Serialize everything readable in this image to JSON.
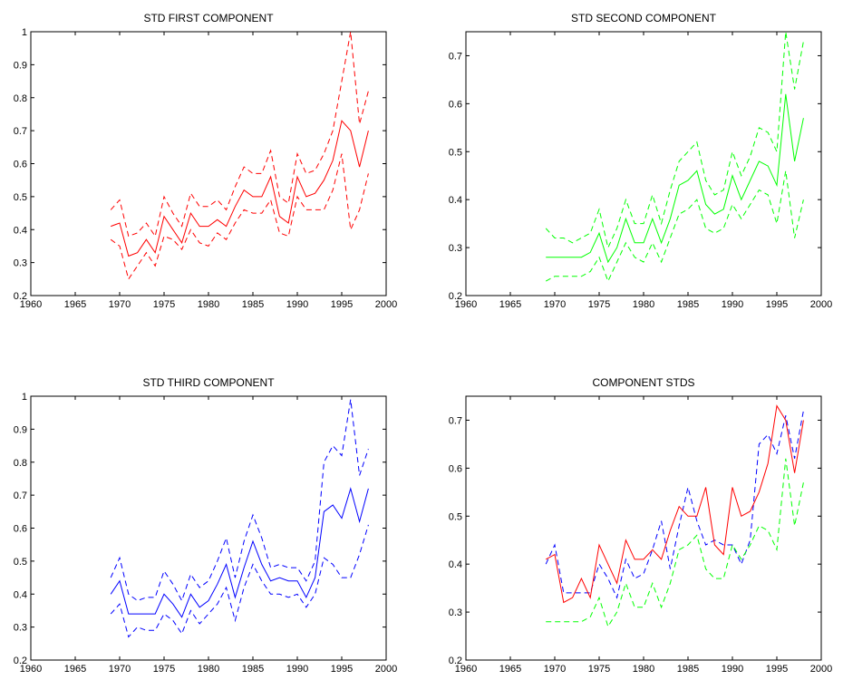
{
  "chart_data": [
    {
      "type": "line",
      "title": "STD FIRST COMPONENT",
      "xlabel": "",
      "ylabel": "",
      "xlim": [
        1960,
        2000
      ],
      "ylim": [
        0.2,
        1.0
      ],
      "xticks": [
        1960,
        1965,
        1970,
        1975,
        1980,
        1985,
        1990,
        1995,
        2000
      ],
      "yticks": [
        0.2,
        0.3,
        0.4,
        0.5,
        0.6,
        0.7,
        0.8,
        0.9,
        1.0
      ],
      "ytick_labels": [
        "0.2",
        "0.3",
        "0.4",
        "0.5",
        "0.6",
        "0.7",
        "0.8",
        "0.9",
        "1"
      ],
      "grid": false,
      "x": [
        1969,
        1970,
        1971,
        1972,
        1973,
        1974,
        1975,
        1976,
        1977,
        1978,
        1979,
        1980,
        1981,
        1982,
        1983,
        1984,
        1985,
        1986,
        1987,
        1988,
        1989,
        1990,
        1991,
        1992,
        1993,
        1994,
        1995,
        1996,
        1997,
        1998
      ],
      "series": [
        {
          "color": "#ff0000",
          "style": "solid",
          "values": [
            0.41,
            0.42,
            0.32,
            0.33,
            0.37,
            0.33,
            0.44,
            0.4,
            0.36,
            0.45,
            0.41,
            0.41,
            0.43,
            0.41,
            0.47,
            0.52,
            0.5,
            0.5,
            0.56,
            0.44,
            0.42,
            0.56,
            0.5,
            0.51,
            0.55,
            0.61,
            0.73,
            0.7,
            0.59,
            0.7
          ]
        },
        {
          "color": "#ff0000",
          "style": "dashed",
          "values": [
            0.46,
            0.49,
            0.38,
            0.39,
            0.42,
            0.38,
            0.5,
            0.45,
            0.41,
            0.51,
            0.47,
            0.47,
            0.49,
            0.46,
            0.53,
            0.59,
            0.57,
            0.57,
            0.64,
            0.5,
            0.48,
            0.63,
            0.57,
            0.58,
            0.63,
            0.7,
            0.85,
            1.0,
            0.72,
            0.82
          ]
        },
        {
          "color": "#ff0000",
          "style": "dashed",
          "values": [
            0.37,
            0.35,
            0.25,
            0.29,
            0.33,
            0.29,
            0.38,
            0.37,
            0.34,
            0.4,
            0.36,
            0.35,
            0.39,
            0.37,
            0.42,
            0.46,
            0.45,
            0.45,
            0.49,
            0.39,
            0.38,
            0.5,
            0.46,
            0.46,
            0.46,
            0.52,
            0.63,
            0.4,
            0.46,
            0.57
          ]
        }
      ]
    },
    {
      "type": "line",
      "title": "STD SECOND COMPONENT",
      "xlabel": "",
      "ylabel": "",
      "xlim": [
        1960,
        2000
      ],
      "ylim": [
        0.2,
        0.75
      ],
      "xticks": [
        1960,
        1965,
        1970,
        1975,
        1980,
        1985,
        1990,
        1995,
        2000
      ],
      "yticks": [
        0.2,
        0.3,
        0.4,
        0.5,
        0.6,
        0.7
      ],
      "ytick_labels": [
        "0.2",
        "0.3",
        "0.4",
        "0.5",
        "0.6",
        "0.7"
      ],
      "grid": false,
      "x": [
        1969,
        1970,
        1971,
        1972,
        1973,
        1974,
        1975,
        1976,
        1977,
        1978,
        1979,
        1980,
        1981,
        1982,
        1983,
        1984,
        1985,
        1986,
        1987,
        1988,
        1989,
        1990,
        1991,
        1992,
        1993,
        1994,
        1995,
        1996,
        1997,
        1998
      ],
      "series": [
        {
          "color": "#00ff00",
          "style": "solid",
          "values": [
            0.28,
            0.28,
            0.28,
            0.28,
            0.28,
            0.29,
            0.33,
            0.27,
            0.3,
            0.36,
            0.31,
            0.31,
            0.36,
            0.31,
            0.36,
            0.43,
            0.44,
            0.46,
            0.39,
            0.37,
            0.38,
            0.45,
            0.4,
            0.44,
            0.48,
            0.47,
            0.43,
            0.62,
            0.48,
            0.57
          ]
        },
        {
          "color": "#00ff00",
          "style": "dashed",
          "values": [
            0.34,
            0.32,
            0.32,
            0.31,
            0.32,
            0.33,
            0.38,
            0.3,
            0.34,
            0.4,
            0.35,
            0.35,
            0.41,
            0.35,
            0.42,
            0.48,
            0.5,
            0.52,
            0.44,
            0.41,
            0.42,
            0.5,
            0.45,
            0.49,
            0.55,
            0.54,
            0.5,
            0.75,
            0.63,
            0.73
          ]
        },
        {
          "color": "#00ff00",
          "style": "dashed",
          "values": [
            0.23,
            0.24,
            0.24,
            0.24,
            0.24,
            0.25,
            0.28,
            0.23,
            0.27,
            0.31,
            0.28,
            0.27,
            0.31,
            0.27,
            0.32,
            0.37,
            0.38,
            0.4,
            0.34,
            0.33,
            0.34,
            0.39,
            0.36,
            0.39,
            0.42,
            0.41,
            0.35,
            0.46,
            0.32,
            0.4
          ]
        }
      ]
    },
    {
      "type": "line",
      "title": "STD THIRD COMPONENT",
      "xlabel": "",
      "ylabel": "",
      "xlim": [
        1960,
        2000
      ],
      "ylim": [
        0.2,
        1.0
      ],
      "xticks": [
        1960,
        1965,
        1970,
        1975,
        1980,
        1985,
        1990,
        1995,
        2000
      ],
      "yticks": [
        0.2,
        0.3,
        0.4,
        0.5,
        0.6,
        0.7,
        0.8,
        0.9,
        1.0
      ],
      "ytick_labels": [
        "0.2",
        "0.3",
        "0.4",
        "0.5",
        "0.6",
        "0.7",
        "0.8",
        "0.9",
        "1"
      ],
      "grid": false,
      "x": [
        1969,
        1970,
        1971,
        1972,
        1973,
        1974,
        1975,
        1976,
        1977,
        1978,
        1979,
        1980,
        1981,
        1982,
        1983,
        1984,
        1985,
        1986,
        1987,
        1988,
        1989,
        1990,
        1991,
        1992,
        1993,
        1994,
        1995,
        1996,
        1997,
        1998
      ],
      "series": [
        {
          "color": "#0000ff",
          "style": "solid",
          "values": [
            0.4,
            0.44,
            0.34,
            0.34,
            0.34,
            0.34,
            0.4,
            0.37,
            0.33,
            0.4,
            0.36,
            0.38,
            0.43,
            0.49,
            0.39,
            0.48,
            0.56,
            0.49,
            0.44,
            0.45,
            0.44,
            0.44,
            0.39,
            0.45,
            0.65,
            0.67,
            0.63,
            0.72,
            0.62,
            0.72
          ]
        },
        {
          "color": "#0000ff",
          "style": "dashed",
          "values": [
            0.45,
            0.51,
            0.4,
            0.38,
            0.39,
            0.39,
            0.47,
            0.43,
            0.38,
            0.46,
            0.42,
            0.44,
            0.5,
            0.57,
            0.45,
            0.56,
            0.64,
            0.57,
            0.48,
            0.49,
            0.48,
            0.48,
            0.44,
            0.5,
            0.8,
            0.85,
            0.82,
            0.99,
            0.76,
            0.84
          ]
        },
        {
          "color": "#0000ff",
          "style": "dashed",
          "values": [
            0.34,
            0.37,
            0.27,
            0.3,
            0.29,
            0.29,
            0.34,
            0.32,
            0.28,
            0.35,
            0.31,
            0.34,
            0.37,
            0.42,
            0.32,
            0.42,
            0.49,
            0.44,
            0.4,
            0.4,
            0.39,
            0.4,
            0.36,
            0.4,
            0.51,
            0.49,
            0.45,
            0.45,
            0.52,
            0.61
          ]
        }
      ]
    },
    {
      "type": "line",
      "title": "COMPONENT STDS",
      "xlabel": "",
      "ylabel": "",
      "xlim": [
        1960,
        2000
      ],
      "ylim": [
        0.2,
        0.75
      ],
      "xticks": [
        1960,
        1965,
        1970,
        1975,
        1980,
        1985,
        1990,
        1995,
        2000
      ],
      "yticks": [
        0.2,
        0.3,
        0.4,
        0.5,
        0.6,
        0.7
      ],
      "ytick_labels": [
        "0.2",
        "0.3",
        "0.4",
        "0.5",
        "0.6",
        "0.7"
      ],
      "grid": false,
      "x": [
        1969,
        1970,
        1971,
        1972,
        1973,
        1974,
        1975,
        1976,
        1977,
        1978,
        1979,
        1980,
        1981,
        1982,
        1983,
        1984,
        1985,
        1986,
        1987,
        1988,
        1989,
        1990,
        1991,
        1992,
        1993,
        1994,
        1995,
        1996,
        1997,
        1998
      ],
      "series": [
        {
          "color": "#0000ff",
          "style": "dashed",
          "values": [
            0.4,
            0.44,
            0.34,
            0.34,
            0.34,
            0.34,
            0.4,
            0.37,
            0.33,
            0.41,
            0.37,
            0.38,
            0.43,
            0.49,
            0.39,
            0.48,
            0.56,
            0.49,
            0.44,
            0.45,
            0.44,
            0.44,
            0.4,
            0.45,
            0.65,
            0.67,
            0.63,
            0.71,
            0.62,
            0.72
          ]
        },
        {
          "color": "#00ff00",
          "style": "dashed",
          "values": [
            0.28,
            0.28,
            0.28,
            0.28,
            0.28,
            0.29,
            0.33,
            0.27,
            0.3,
            0.36,
            0.31,
            0.31,
            0.36,
            0.31,
            0.36,
            0.43,
            0.44,
            0.46,
            0.39,
            0.37,
            0.37,
            0.44,
            0.41,
            0.44,
            0.48,
            0.47,
            0.43,
            0.62,
            0.48,
            0.57
          ]
        },
        {
          "color": "#ff0000",
          "style": "solid",
          "values": [
            0.41,
            0.42,
            0.32,
            0.33,
            0.37,
            0.33,
            0.44,
            0.4,
            0.36,
            0.45,
            0.41,
            0.41,
            0.43,
            0.41,
            0.47,
            0.52,
            0.5,
            0.5,
            0.56,
            0.44,
            0.42,
            0.56,
            0.5,
            0.51,
            0.55,
            0.61,
            0.73,
            0.7,
            0.59,
            0.7
          ]
        }
      ]
    }
  ]
}
